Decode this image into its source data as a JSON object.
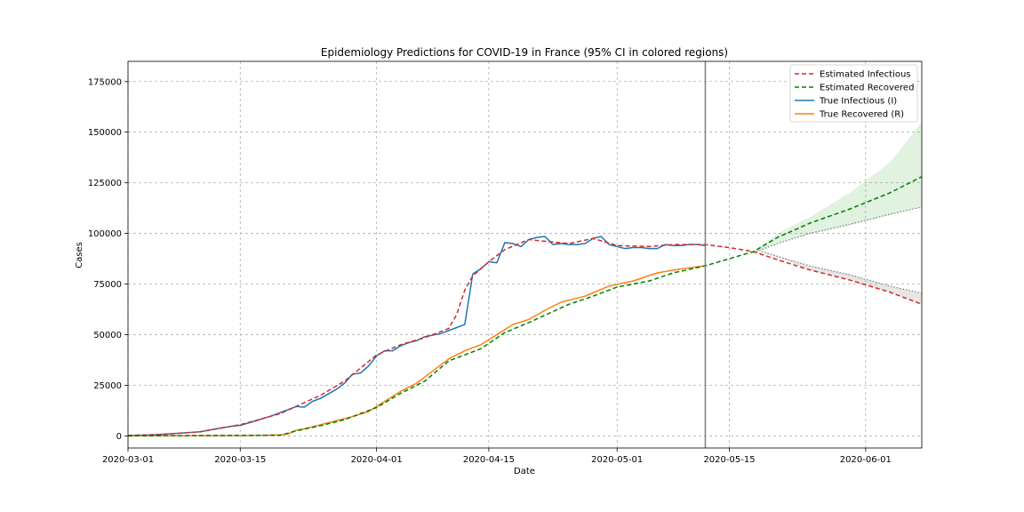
{
  "chart_data": {
    "type": "line",
    "title": "Epidemiology Predictions for COVID-19 in France (95% CI in colored regions)",
    "xlabel": "Date",
    "ylabel": "Cases",
    "x_start": "2020-03-01",
    "x_end": "2020-06-08",
    "ylim": [
      -6000,
      185000
    ],
    "yticks": [
      0,
      25000,
      50000,
      75000,
      100000,
      125000,
      150000,
      175000
    ],
    "xticks": [
      "2020-03-01",
      "2020-03-15",
      "2020-04-01",
      "2020-04-15",
      "2020-05-01",
      "2020-05-15",
      "2020-06-01"
    ],
    "grid": true,
    "legend_position": "top-right",
    "prediction_start": "2020-05-12",
    "series": [
      {
        "name": "Estimated Infectious",
        "color": "#d62728",
        "style": "dashed",
        "points": [
          [
            "2020-03-01",
            200
          ],
          [
            "2020-03-05",
            700
          ],
          [
            "2020-03-10",
            2000
          ],
          [
            "2020-03-15",
            5500
          ],
          [
            "2020-03-20",
            11000
          ],
          [
            "2020-03-25",
            20000
          ],
          [
            "2020-03-28",
            27000
          ],
          [
            "2020-04-01",
            40000
          ],
          [
            "2020-04-04",
            45000
          ],
          [
            "2020-04-07",
            48500
          ],
          [
            "2020-04-10",
            53000
          ],
          [
            "2020-04-11",
            60000
          ],
          [
            "2020-04-12",
            72000
          ],
          [
            "2020-04-13",
            79000
          ],
          [
            "2020-04-15",
            86000
          ],
          [
            "2020-04-17",
            92000
          ],
          [
            "2020-04-20",
            97000
          ],
          [
            "2020-04-21",
            96500
          ],
          [
            "2020-04-25",
            95000
          ],
          [
            "2020-04-28",
            97500
          ],
          [
            "2020-05-01",
            94000
          ],
          [
            "2020-05-05",
            93500
          ],
          [
            "2020-05-08",
            94500
          ],
          [
            "2020-05-12",
            94500
          ],
          [
            "2020-05-15",
            93000
          ],
          [
            "2020-05-18",
            91000
          ],
          [
            "2020-05-21",
            87000
          ],
          [
            "2020-05-25",
            82000
          ],
          [
            "2020-05-30",
            77000
          ],
          [
            "2020-06-04",
            71000
          ],
          [
            "2020-06-08",
            65000
          ]
        ]
      },
      {
        "name": "Estimated Recovered",
        "color": "#008000",
        "style": "dashed",
        "points": [
          [
            "2020-03-01",
            0
          ],
          [
            "2020-03-20",
            300
          ],
          [
            "2020-03-22",
            2500
          ],
          [
            "2020-03-25",
            5000
          ],
          [
            "2020-03-28",
            8000
          ],
          [
            "2020-04-01",
            14000
          ],
          [
            "2020-04-04",
            21000
          ],
          [
            "2020-04-07",
            27000
          ],
          [
            "2020-04-10",
            37000
          ],
          [
            "2020-04-14",
            43000
          ],
          [
            "2020-04-17",
            51000
          ],
          [
            "2020-04-20",
            56000
          ],
          [
            "2020-04-25",
            65000
          ],
          [
            "2020-04-28",
            69000
          ],
          [
            "2020-05-01",
            73500
          ],
          [
            "2020-05-05",
            76500
          ],
          [
            "2020-05-08",
            80500
          ],
          [
            "2020-05-12",
            84000
          ],
          [
            "2020-05-15",
            87500
          ],
          [
            "2020-05-18",
            91000
          ],
          [
            "2020-05-21",
            98000
          ],
          [
            "2020-05-25",
            105000
          ],
          [
            "2020-05-30",
            112000
          ],
          [
            "2020-06-04",
            120000
          ],
          [
            "2020-06-08",
            128000
          ]
        ]
      },
      {
        "name": "True Infectious (I)",
        "color": "#1f77b4",
        "style": "solid",
        "points": [
          [
            "2020-03-01",
            200
          ],
          [
            "2020-03-04",
            500
          ],
          [
            "2020-03-07",
            1200
          ],
          [
            "2020-03-10",
            2000
          ],
          [
            "2020-03-12",
            3500
          ],
          [
            "2020-03-14",
            4800
          ],
          [
            "2020-03-15",
            5200
          ],
          [
            "2020-03-17",
            7500
          ],
          [
            "2020-03-19",
            10000
          ],
          [
            "2020-03-21",
            13000
          ],
          [
            "2020-03-22",
            14500
          ],
          [
            "2020-03-23",
            14200
          ],
          [
            "2020-03-24",
            17000
          ],
          [
            "2020-03-25",
            18500
          ],
          [
            "2020-03-27",
            23000
          ],
          [
            "2020-03-28",
            26000
          ],
          [
            "2020-03-29",
            30500
          ],
          [
            "2020-03-30",
            31000
          ],
          [
            "2020-03-31",
            34500
          ],
          [
            "2020-04-01",
            39500
          ],
          [
            "2020-04-02",
            42000
          ],
          [
            "2020-04-03",
            42000
          ],
          [
            "2020-04-04",
            44500
          ],
          [
            "2020-04-05",
            46000
          ],
          [
            "2020-04-06",
            47000
          ],
          [
            "2020-04-07",
            49000
          ],
          [
            "2020-04-09",
            50500
          ],
          [
            "2020-04-10",
            52000
          ],
          [
            "2020-04-11",
            53500
          ],
          [
            "2020-04-12",
            55000
          ],
          [
            "2020-04-13",
            80000
          ],
          [
            "2020-04-14",
            82500
          ],
          [
            "2020-04-15",
            86000
          ],
          [
            "2020-04-16",
            85500
          ],
          [
            "2020-04-17",
            95500
          ],
          [
            "2020-04-18",
            95000
          ],
          [
            "2020-04-19",
            93500
          ],
          [
            "2020-04-20",
            97000
          ],
          [
            "2020-04-21",
            98000
          ],
          [
            "2020-04-22",
            98500
          ],
          [
            "2020-04-23",
            94500
          ],
          [
            "2020-04-24",
            95000
          ],
          [
            "2020-04-25",
            94500
          ],
          [
            "2020-04-26",
            94500
          ],
          [
            "2020-04-27",
            95000
          ],
          [
            "2020-04-28",
            97500
          ],
          [
            "2020-04-29",
            98500
          ],
          [
            "2020-04-30",
            94500
          ],
          [
            "2020-05-01",
            93500
          ],
          [
            "2020-05-02",
            92500
          ],
          [
            "2020-05-03",
            93000
          ],
          [
            "2020-05-04",
            93000
          ],
          [
            "2020-05-05",
            92500
          ],
          [
            "2020-05-06",
            92500
          ],
          [
            "2020-05-07",
            94500
          ],
          [
            "2020-05-08",
            94000
          ],
          [
            "2020-05-09",
            94000
          ],
          [
            "2020-05-10",
            94500
          ],
          [
            "2020-05-11",
            94500
          ],
          [
            "2020-05-12",
            94000
          ]
        ]
      },
      {
        "name": "True Recovered (R)",
        "color": "#ff7f0e",
        "style": "solid",
        "points": [
          [
            "2020-03-01",
            0
          ],
          [
            "2020-03-15",
            100
          ],
          [
            "2020-03-20",
            500
          ],
          [
            "2020-03-21",
            1000
          ],
          [
            "2020-03-22",
            2800
          ],
          [
            "2020-03-23",
            3500
          ],
          [
            "2020-03-25",
            5500
          ],
          [
            "2020-03-27",
            7500
          ],
          [
            "2020-03-29",
            9500
          ],
          [
            "2020-03-31",
            12000
          ],
          [
            "2020-04-02",
            17000
          ],
          [
            "2020-04-04",
            22000
          ],
          [
            "2020-04-06",
            26000
          ],
          [
            "2020-04-08",
            32000
          ],
          [
            "2020-04-10",
            38000
          ],
          [
            "2020-04-12",
            42000
          ],
          [
            "2020-04-14",
            45000
          ],
          [
            "2020-04-16",
            50000
          ],
          [
            "2020-04-18",
            55000
          ],
          [
            "2020-04-20",
            57500
          ],
          [
            "2020-04-22",
            62000
          ],
          [
            "2020-04-24",
            66000
          ],
          [
            "2020-04-27",
            69000
          ],
          [
            "2020-04-30",
            74000
          ],
          [
            "2020-05-03",
            76500
          ],
          [
            "2020-05-06",
            80500
          ],
          [
            "2020-05-09",
            82500
          ],
          [
            "2020-05-12",
            84000
          ]
        ]
      }
    ],
    "bands": [
      {
        "color": "#2ca02c",
        "opacity": 0.14,
        "points": [
          [
            "2020-05-18",
            90000,
            91000
          ],
          [
            "2020-05-21",
            95000,
            100000
          ],
          [
            "2020-05-25",
            99500,
            108000
          ],
          [
            "2020-05-30",
            104000,
            120000
          ],
          [
            "2020-06-04",
            109000,
            135000
          ],
          [
            "2020-06-08",
            113000,
            155000
          ]
        ]
      },
      {
        "color": "#808080",
        "opacity": 0.2,
        "points": [
          [
            "2020-05-19",
            91000,
            91500
          ],
          [
            "2020-05-25",
            82000,
            84000
          ],
          [
            "2020-05-30",
            77000,
            80000
          ],
          [
            "2020-06-04",
            71000,
            74000
          ],
          [
            "2020-06-08",
            65000,
            70500
          ]
        ]
      }
    ],
    "bound_lines": [
      {
        "color": "#808080",
        "points": [
          [
            "2020-05-18",
            90500
          ],
          [
            "2020-05-21",
            95000
          ],
          [
            "2020-05-25",
            100000
          ],
          [
            "2020-05-30",
            104500
          ],
          [
            "2020-06-04",
            109500
          ],
          [
            "2020-06-08",
            113000
          ]
        ]
      },
      {
        "color": "#808080",
        "points": [
          [
            "2020-05-19",
            91000
          ],
          [
            "2020-05-25",
            84000
          ],
          [
            "2020-05-30",
            79500
          ],
          [
            "2020-06-04",
            74000
          ],
          [
            "2020-06-08",
            70500
          ]
        ]
      }
    ]
  }
}
